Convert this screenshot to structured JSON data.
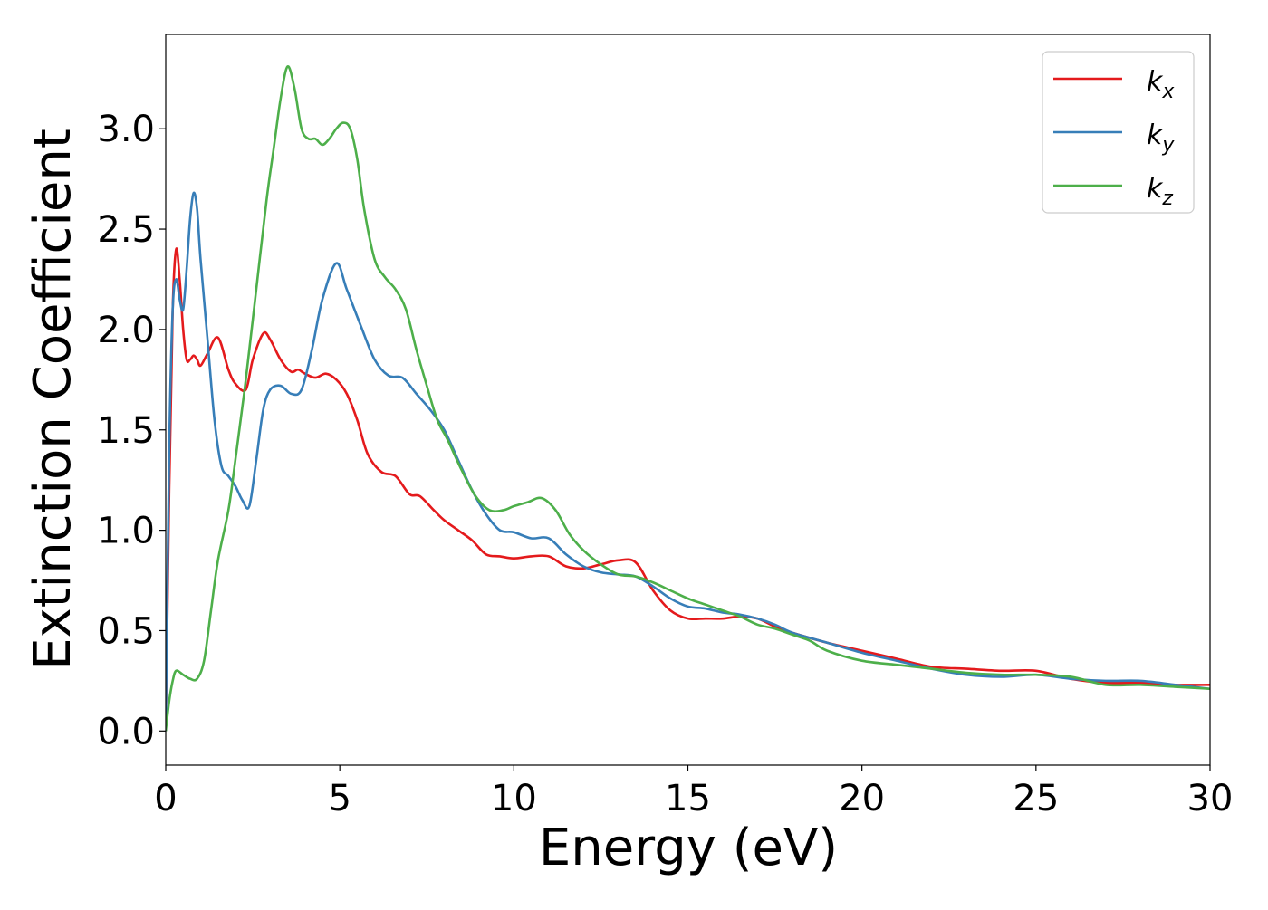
{
  "chart_data": {
    "type": "line",
    "title": "",
    "xlabel": "Energy (eV)",
    "ylabel": "Extinction Coefficient",
    "xlim": [
      0,
      30
    ],
    "ylim": [
      -0.17,
      3.47
    ],
    "xticks": [
      0,
      5,
      10,
      15,
      20,
      25,
      30
    ],
    "yticks": [
      0.0,
      0.5,
      1.0,
      1.5,
      2.0,
      2.5,
      3.0
    ],
    "xtick_labels": [
      "0",
      "5",
      "10",
      "15",
      "20",
      "25",
      "30"
    ],
    "ytick_labels": [
      "0.0",
      "0.5",
      "1.0",
      "1.5",
      "2.0",
      "2.5",
      "3.0"
    ],
    "grid": false,
    "legend_position": "top-right",
    "series": [
      {
        "name": "kx",
        "legend_base": "k",
        "legend_sub": "x",
        "color": "#e41a1c",
        "x": [
          0,
          0.1,
          0.2,
          0.3,
          0.4,
          0.5,
          0.6,
          0.7,
          0.8,
          0.9,
          1.0,
          1.2,
          1.5,
          1.8,
          2.0,
          2.3,
          2.5,
          2.8,
          3.0,
          3.3,
          3.6,
          3.8,
          4.0,
          4.3,
          4.6,
          4.9,
          5.2,
          5.5,
          5.8,
          6.2,
          6.6,
          7.0,
          7.3,
          7.7,
          8.0,
          8.4,
          8.8,
          9.2,
          9.6,
          10.0,
          10.5,
          11.0,
          11.5,
          12.0,
          12.5,
          13.0,
          13.5,
          14.0,
          14.5,
          15.0,
          15.5,
          16.0,
          16.5,
          17.0,
          17.5,
          18.0,
          19.0,
          20.0,
          21.0,
          22.0,
          23.0,
          24.0,
          25.0,
          26.0,
          27.0,
          28.0,
          29.0,
          30.0
        ],
        "values": [
          0.0,
          1.2,
          2.1,
          2.4,
          2.25,
          2.0,
          1.85,
          1.85,
          1.87,
          1.85,
          1.82,
          1.88,
          1.96,
          1.8,
          1.73,
          1.7,
          1.85,
          1.98,
          1.95,
          1.85,
          1.79,
          1.8,
          1.78,
          1.76,
          1.78,
          1.75,
          1.68,
          1.55,
          1.38,
          1.29,
          1.27,
          1.18,
          1.17,
          1.1,
          1.05,
          1.0,
          0.95,
          0.88,
          0.87,
          0.86,
          0.87,
          0.87,
          0.82,
          0.81,
          0.83,
          0.85,
          0.84,
          0.7,
          0.6,
          0.56,
          0.56,
          0.56,
          0.57,
          0.56,
          0.52,
          0.49,
          0.44,
          0.4,
          0.36,
          0.32,
          0.31,
          0.3,
          0.3,
          0.26,
          0.24,
          0.24,
          0.23,
          0.23
        ]
      },
      {
        "name": "ky",
        "legend_base": "k",
        "legend_sub": "y",
        "color": "#377eb8",
        "x": [
          0,
          0.1,
          0.2,
          0.3,
          0.4,
          0.5,
          0.6,
          0.7,
          0.8,
          0.9,
          1.0,
          1.2,
          1.4,
          1.6,
          1.8,
          2.0,
          2.2,
          2.4,
          2.6,
          2.8,
          3.0,
          3.3,
          3.6,
          3.9,
          4.2,
          4.5,
          4.9,
          5.2,
          5.6,
          6.0,
          6.4,
          6.8,
          7.2,
          7.6,
          8.0,
          8.4,
          8.8,
          9.2,
          9.6,
          10.0,
          10.5,
          11.0,
          11.5,
          12.0,
          12.5,
          13.0,
          13.5,
          14.0,
          14.5,
          15.0,
          15.5,
          16.0,
          16.5,
          17.0,
          17.5,
          18.0,
          19.0,
          20.0,
          21.0,
          22.0,
          23.0,
          24.0,
          25.0,
          26.0,
          27.0,
          28.0,
          29.0,
          30.0
        ],
        "values": [
          0.0,
          1.4,
          2.1,
          2.25,
          2.15,
          2.1,
          2.3,
          2.55,
          2.68,
          2.6,
          2.35,
          1.95,
          1.55,
          1.32,
          1.27,
          1.22,
          1.15,
          1.12,
          1.35,
          1.6,
          1.7,
          1.72,
          1.68,
          1.7,
          1.9,
          2.15,
          2.33,
          2.2,
          2.02,
          1.85,
          1.77,
          1.76,
          1.68,
          1.6,
          1.5,
          1.35,
          1.2,
          1.08,
          1.0,
          0.99,
          0.96,
          0.96,
          0.88,
          0.82,
          0.79,
          0.78,
          0.77,
          0.72,
          0.66,
          0.62,
          0.61,
          0.59,
          0.58,
          0.56,
          0.53,
          0.49,
          0.44,
          0.39,
          0.35,
          0.31,
          0.28,
          0.27,
          0.28,
          0.26,
          0.25,
          0.25,
          0.23,
          0.21
        ]
      },
      {
        "name": "kz",
        "legend_base": "k",
        "legend_sub": "z",
        "color": "#4daf4a",
        "x": [
          0,
          0.1,
          0.2,
          0.3,
          0.5,
          0.7,
          0.9,
          1.1,
          1.3,
          1.5,
          1.8,
          2.0,
          2.3,
          2.6,
          2.9,
          3.1,
          3.3,
          3.5,
          3.7,
          3.9,
          4.1,
          4.3,
          4.5,
          4.7,
          4.9,
          5.1,
          5.3,
          5.5,
          5.7,
          6.0,
          6.3,
          6.6,
          6.9,
          7.2,
          7.5,
          7.8,
          8.1,
          8.5,
          8.9,
          9.3,
          9.7,
          10.0,
          10.4,
          10.8,
          11.2,
          11.6,
          12.0,
          12.5,
          13.0,
          13.5,
          14.0,
          14.5,
          15.0,
          15.5,
          16.0,
          16.5,
          17.0,
          17.5,
          18.0,
          18.5,
          19.0,
          20.0,
          21.0,
          22.0,
          23.0,
          24.0,
          25.0,
          26.0,
          27.0,
          28.0,
          29.0,
          30.0
        ],
        "values": [
          0.0,
          0.15,
          0.25,
          0.3,
          0.28,
          0.26,
          0.26,
          0.35,
          0.6,
          0.85,
          1.1,
          1.35,
          1.75,
          2.2,
          2.65,
          2.9,
          3.15,
          3.31,
          3.2,
          3.0,
          2.95,
          2.95,
          2.92,
          2.95,
          3.0,
          3.03,
          3.0,
          2.85,
          2.6,
          2.35,
          2.26,
          2.2,
          2.1,
          1.9,
          1.72,
          1.55,
          1.45,
          1.3,
          1.17,
          1.1,
          1.1,
          1.12,
          1.14,
          1.16,
          1.1,
          0.98,
          0.9,
          0.83,
          0.78,
          0.77,
          0.74,
          0.7,
          0.66,
          0.63,
          0.6,
          0.57,
          0.53,
          0.51,
          0.48,
          0.45,
          0.4,
          0.35,
          0.33,
          0.31,
          0.29,
          0.28,
          0.28,
          0.27,
          0.23,
          0.23,
          0.22,
          0.21
        ]
      }
    ]
  }
}
